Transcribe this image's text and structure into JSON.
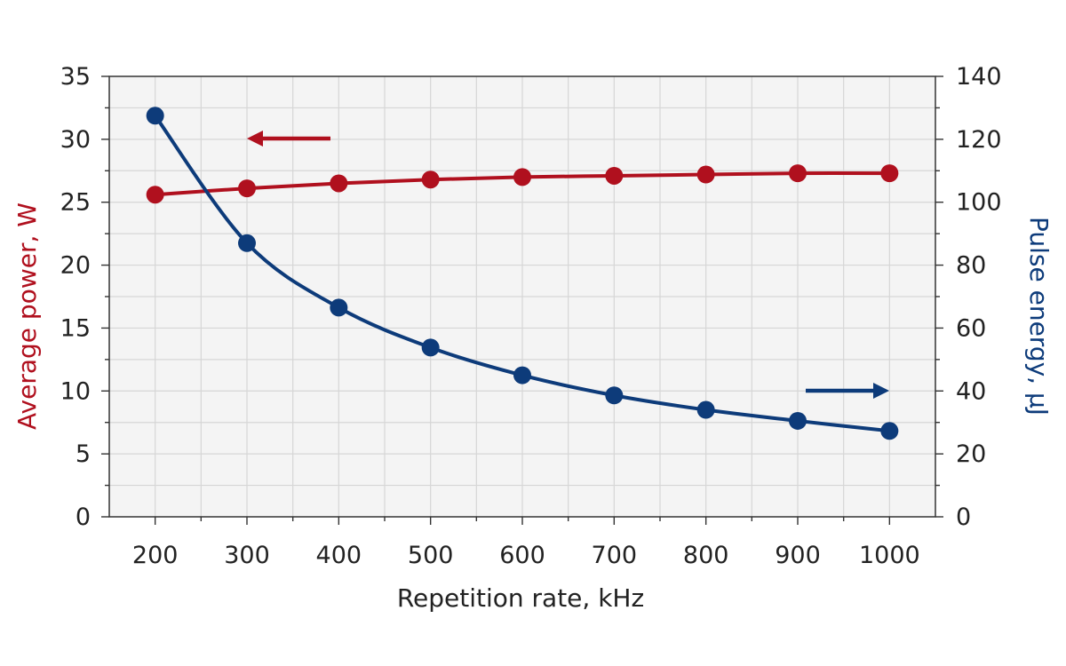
{
  "chart_data": {
    "type": "line",
    "xlabel": "Repetition rate, kHz",
    "ylabel_left": "Average power, W",
    "ylabel_right": "Pulse energy, µJ",
    "x": [
      200,
      300,
      400,
      500,
      600,
      700,
      800,
      900,
      1000
    ],
    "xlim": [
      150,
      1050
    ],
    "xticks": [
      200,
      300,
      400,
      500,
      600,
      700,
      800,
      900,
      1000
    ],
    "ylim_left": [
      0,
      35
    ],
    "yticks_left": [
      0,
      5,
      10,
      15,
      20,
      25,
      30,
      35
    ],
    "ylim_right": [
      0,
      140
    ],
    "yticks_right": [
      0,
      20,
      40,
      60,
      80,
      100,
      120,
      140
    ],
    "grid": true,
    "series": [
      {
        "axis": "left",
        "color": "#b0101e",
        "values": [
          25.6,
          26.1,
          26.5,
          26.8,
          27.0,
          27.1,
          27.2,
          27.3,
          27.3
        ]
      },
      {
        "axis": "right",
        "color": "#0d3b7a",
        "values": [
          127.5,
          87.0,
          66.5,
          53.8,
          45.0,
          38.6,
          34.0,
          30.5,
          27.3
        ]
      }
    ],
    "annotations": [
      {
        "type": "arrow",
        "points_to": "left-axis",
        "series": "left",
        "color": "#b0101e"
      },
      {
        "type": "arrow",
        "points_to": "right-axis",
        "series": "right",
        "color": "#0d3b7a"
      }
    ]
  }
}
